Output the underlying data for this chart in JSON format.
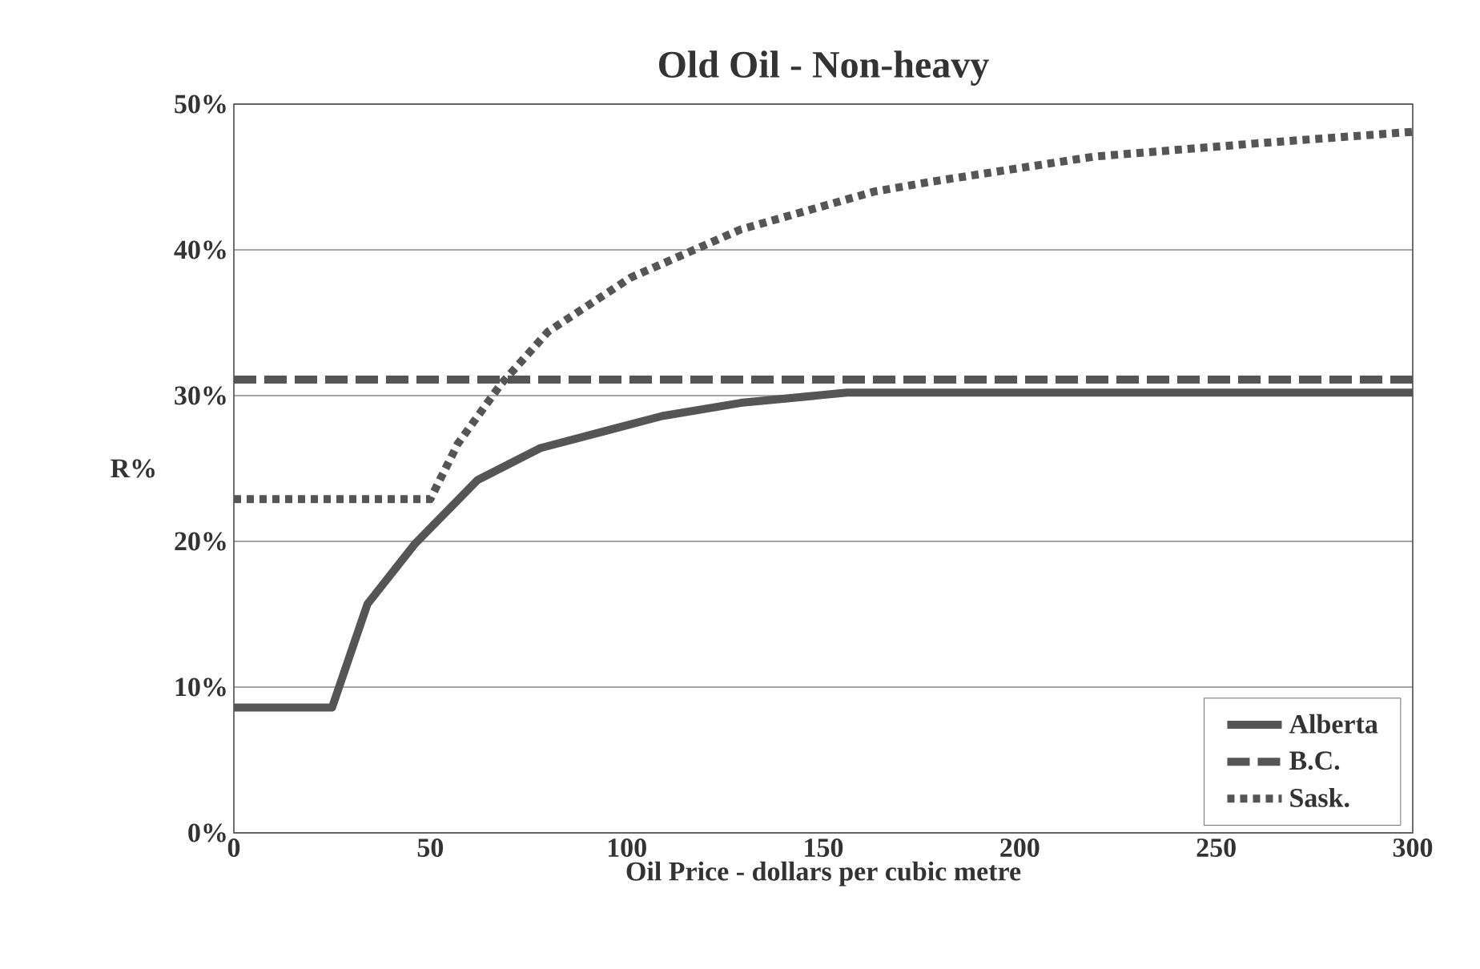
{
  "chart_data": {
    "type": "line",
    "title": "Old Oil   -   Non-heavy",
    "xlabel": "Oil Price - dollars per cubic metre",
    "ylabel": "R%",
    "xlim": [
      0,
      300
    ],
    "xticks": [
      0,
      50,
      100,
      150,
      200,
      250,
      300
    ],
    "ylim": [
      0,
      50
    ],
    "yticks": [
      {
        "value": 0,
        "label": "0%"
      },
      {
        "value": 10,
        "label": "10%"
      },
      {
        "value": 20,
        "label": "20%"
      },
      {
        "value": 30,
        "label": "30%"
      },
      {
        "value": 40,
        "label": "40%"
      },
      {
        "value": 50,
        "label": "50%"
      }
    ],
    "grid": "y",
    "legend": "bottom right",
    "marker": "none",
    "series": [
      {
        "name": "Alberta",
        "color": "#555555",
        "line_style": "solid",
        "x": [
          0,
          25,
          34,
          46,
          62,
          78,
          109,
          129,
          156,
          300
        ],
        "values": [
          8.6,
          8.6,
          15.7,
          19.8,
          24.2,
          26.4,
          28.6,
          29.5,
          30.2,
          30.2
        ]
      },
      {
        "name": "B.C.",
        "color": "#555555",
        "line_style": "dashed",
        "x": [
          0,
          300
        ],
        "values": [
          31.1,
          31.1
        ]
      },
      {
        "name": "Sask.",
        "color": "#555555",
        "line_style": "dotted",
        "x": [
          0,
          50,
          57,
          68,
          80,
          101,
          129,
          163,
          178,
          219,
          260,
          300
        ],
        "values": [
          22.9,
          22.9,
          26.7,
          30.8,
          34.4,
          38.1,
          41.4,
          44,
          44.7,
          46.4,
          47.3,
          48.1
        ]
      }
    ]
  }
}
